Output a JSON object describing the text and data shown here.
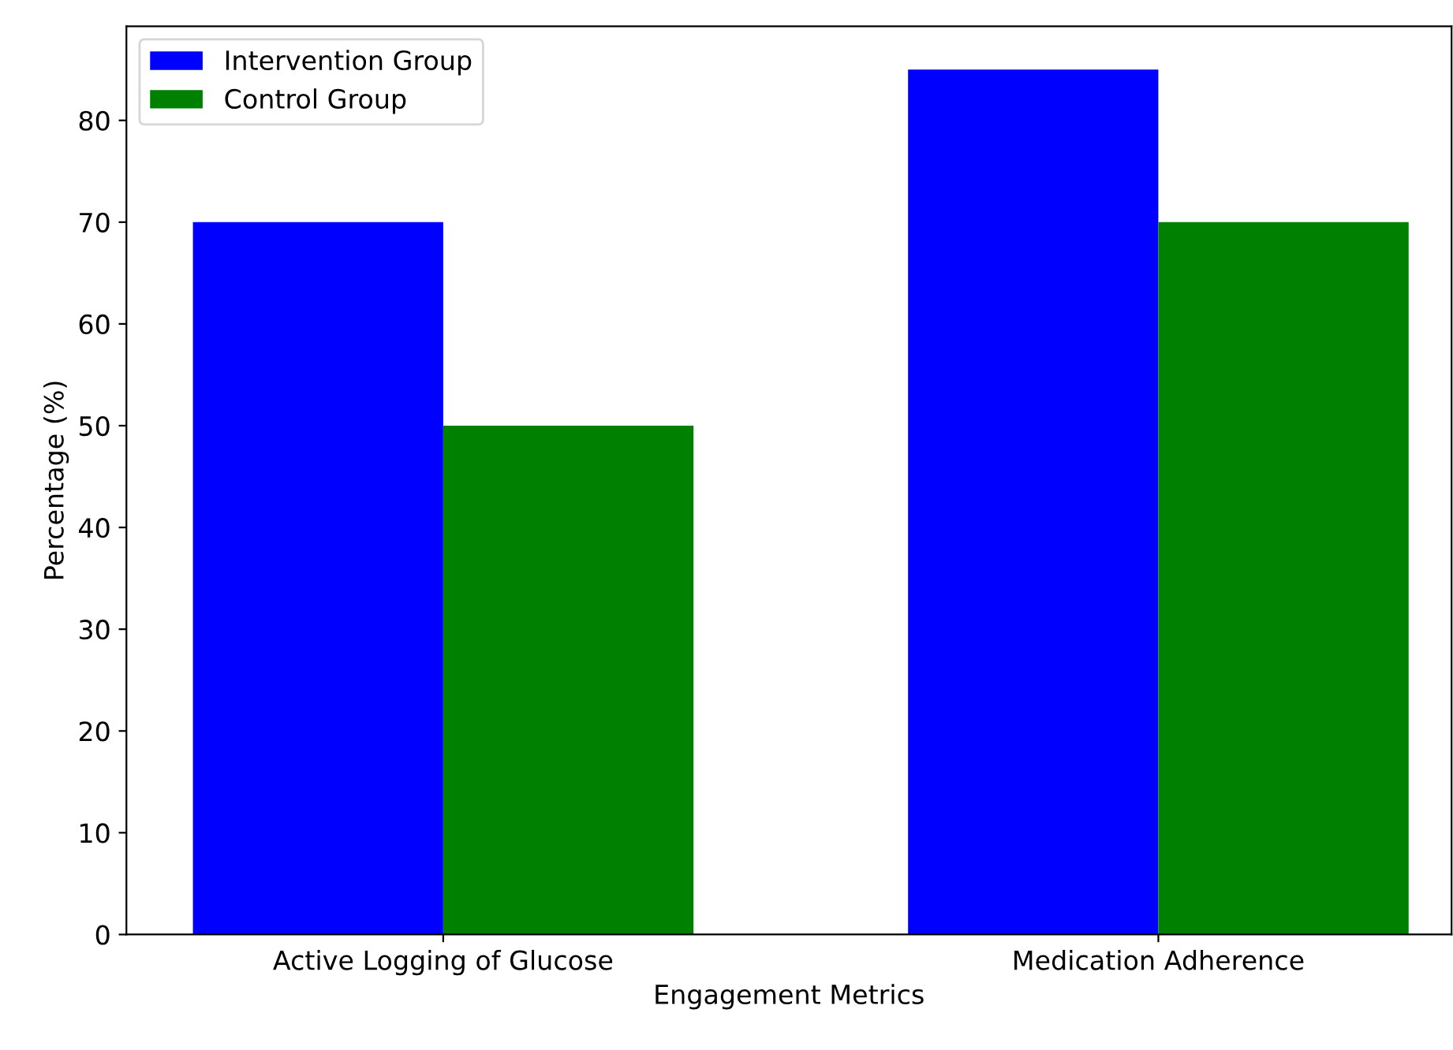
{
  "chart_data": {
    "type": "bar",
    "xlabel": "Engagement Metrics",
    "ylabel": "Percentage (%)",
    "categories": [
      "Active Logging of Glucose",
      "Medication Adherence"
    ],
    "series": [
      {
        "name": "Intervention Group",
        "color": "#0000ff",
        "values": [
          70,
          85
        ]
      },
      {
        "name": "Control Group",
        "color": "#008000",
        "values": [
          50,
          70
        ]
      }
    ],
    "ylim": [
      0,
      89.25
    ],
    "yticks": [
      0,
      10,
      20,
      30,
      40,
      50,
      60,
      70,
      80
    ],
    "grid": false,
    "legend": "top left"
  }
}
